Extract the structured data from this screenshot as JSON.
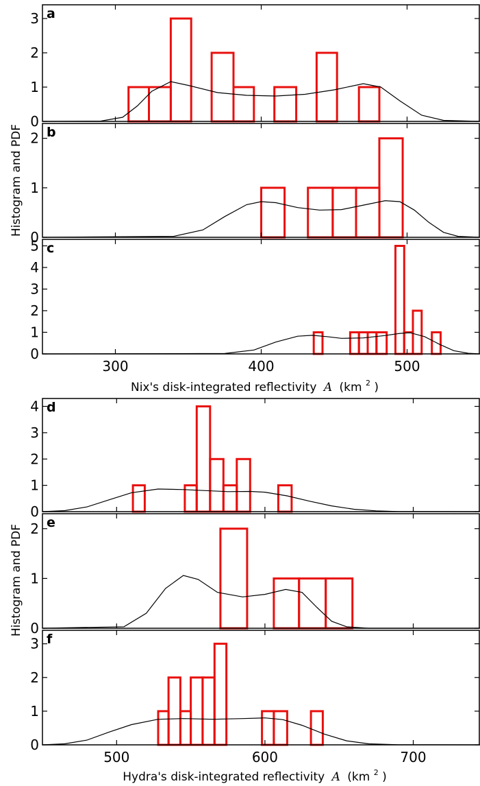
{
  "figure": {
    "top_group": {
      "ylabel": "Histogram and PDF",
      "xlabel": "Nix's disk-integrated reflectivity",
      "xlabel_symbol": "A",
      "xlabel_unit": "(km",
      "xlabel_unit_sup": "2",
      "xlabel_unit_end": " )"
    },
    "bottom_group": {
      "ylabel": "Histogram and PDF",
      "xlabel": "Hydra's disk-integrated reflectivity",
      "xlabel_symbol": "A",
      "xlabel_unit": "(km",
      "xlabel_unit_sup": "2",
      "xlabel_unit_end": " )"
    }
  },
  "chart_data": [
    {
      "panel": "a",
      "type": "bar",
      "histtype": "step",
      "xlim": [
        250,
        550
      ],
      "ylim": [
        0,
        3.4
      ],
      "yticks": [
        0,
        1,
        2,
        3
      ],
      "bar_color": "#e8100e",
      "bins": [
        [
          309,
          323,
          1
        ],
        [
          323,
          338,
          1
        ],
        [
          338,
          352,
          3
        ],
        [
          366,
          381,
          2
        ],
        [
          381,
          395,
          1
        ],
        [
          409,
          424,
          1
        ],
        [
          438,
          452,
          2
        ],
        [
          467,
          481,
          1
        ]
      ],
      "pdf": [
        [
          250,
          0
        ],
        [
          290,
          0.01
        ],
        [
          305,
          0.12
        ],
        [
          315,
          0.45
        ],
        [
          325,
          0.88
        ],
        [
          338,
          1.16
        ],
        [
          350,
          1.05
        ],
        [
          370,
          0.84
        ],
        [
          390,
          0.76
        ],
        [
          410,
          0.74
        ],
        [
          430,
          0.79
        ],
        [
          450,
          0.92
        ],
        [
          470,
          1.1
        ],
        [
          482,
          1.0
        ],
        [
          495,
          0.6
        ],
        [
          510,
          0.18
        ],
        [
          525,
          0.03
        ],
        [
          550,
          0
        ]
      ]
    },
    {
      "panel": "b",
      "type": "bar",
      "histtype": "step",
      "xlim": [
        250,
        550
      ],
      "ylim": [
        0,
        2.3
      ],
      "yticks": [
        0,
        1,
        2
      ],
      "bar_color": "#e8100e",
      "bins": [
        [
          400,
          416,
          1
        ],
        [
          432,
          449,
          1
        ],
        [
          449,
          465,
          1
        ],
        [
          465,
          481,
          1
        ],
        [
          481,
          497,
          2
        ]
      ],
      "pdf": [
        [
          250,
          0
        ],
        [
          340,
          0.02
        ],
        [
          360,
          0.15
        ],
        [
          375,
          0.42
        ],
        [
          390,
          0.66
        ],
        [
          400,
          0.72
        ],
        [
          410,
          0.7
        ],
        [
          425,
          0.6
        ],
        [
          440,
          0.55
        ],
        [
          455,
          0.56
        ],
        [
          470,
          0.65
        ],
        [
          485,
          0.74
        ],
        [
          495,
          0.72
        ],
        [
          505,
          0.55
        ],
        [
          515,
          0.3
        ],
        [
          525,
          0.1
        ],
        [
          535,
          0.02
        ],
        [
          550,
          0
        ]
      ]
    },
    {
      "panel": "c",
      "type": "bar",
      "histtype": "step",
      "xlim": [
        250,
        550
      ],
      "ylim": [
        0,
        5.3
      ],
      "yticks": [
        0,
        1,
        2,
        3,
        4,
        5
      ],
      "xticks": [
        300,
        400,
        500
      ],
      "bar_color": "#e8100e",
      "bins": [
        [
          436,
          442,
          1
        ],
        [
          461,
          467,
          1
        ],
        [
          467,
          473,
          1
        ],
        [
          473,
          479,
          1
        ],
        [
          479,
          486,
          1
        ],
        [
          492,
          498,
          5
        ],
        [
          498,
          504,
          1
        ],
        [
          504,
          510,
          2
        ],
        [
          517,
          523,
          1
        ]
      ],
      "pdf": [
        [
          250,
          0
        ],
        [
          375,
          0.02
        ],
        [
          395,
          0.18
        ],
        [
          410,
          0.55
        ],
        [
          425,
          0.82
        ],
        [
          435,
          0.86
        ],
        [
          445,
          0.8
        ],
        [
          455,
          0.72
        ],
        [
          470,
          0.74
        ],
        [
          485,
          0.85
        ],
        [
          495,
          0.95
        ],
        [
          502,
          0.98
        ],
        [
          512,
          0.8
        ],
        [
          522,
          0.45
        ],
        [
          532,
          0.15
        ],
        [
          542,
          0.03
        ],
        [
          550,
          0
        ]
      ]
    },
    {
      "panel": "d",
      "type": "bar",
      "histtype": "step",
      "xlim": [
        450,
        745
      ],
      "ylim": [
        0,
        4.3
      ],
      "yticks": [
        0,
        1,
        2,
        3,
        4
      ],
      "bar_color": "#e8100e",
      "bins": [
        [
          511,
          519,
          1
        ],
        [
          519,
          546,
          0
        ],
        [
          546,
          554,
          1
        ],
        [
          554,
          563,
          4
        ],
        [
          563,
          572,
          2
        ],
        [
          572,
          581,
          1
        ],
        [
          581,
          590,
          2
        ],
        [
          609,
          618,
          1
        ]
      ],
      "pdf": [
        [
          450,
          0
        ],
        [
          465,
          0.04
        ],
        [
          480,
          0.18
        ],
        [
          495,
          0.45
        ],
        [
          510,
          0.72
        ],
        [
          528,
          0.86
        ],
        [
          545,
          0.84
        ],
        [
          560,
          0.8
        ],
        [
          575,
          0.76
        ],
        [
          590,
          0.77
        ],
        [
          600,
          0.74
        ],
        [
          615,
          0.6
        ],
        [
          630,
          0.4
        ],
        [
          645,
          0.22
        ],
        [
          660,
          0.09
        ],
        [
          675,
          0.03
        ],
        [
          690,
          0.005
        ],
        [
          745,
          0
        ]
      ]
    },
    {
      "panel": "e",
      "type": "bar",
      "histtype": "step",
      "xlim": [
        450,
        745
      ],
      "ylim": [
        0,
        2.3
      ],
      "yticks": [
        0,
        1,
        2
      ],
      "bar_color": "#e8100e",
      "bins": [
        [
          570,
          588,
          2
        ],
        [
          588,
          606,
          0
        ],
        [
          606,
          623,
          1
        ],
        [
          623,
          641,
          1
        ],
        [
          641,
          659,
          1
        ]
      ],
      "pdf": [
        [
          450,
          0
        ],
        [
          505,
          0.03
        ],
        [
          520,
          0.3
        ],
        [
          533,
          0.8
        ],
        [
          545,
          1.06
        ],
        [
          555,
          0.98
        ],
        [
          568,
          0.72
        ],
        [
          585,
          0.63
        ],
        [
          600,
          0.68
        ],
        [
          614,
          0.78
        ],
        [
          625,
          0.72
        ],
        [
          635,
          0.42
        ],
        [
          645,
          0.14
        ],
        [
          655,
          0.03
        ],
        [
          670,
          0
        ],
        [
          745,
          0
        ]
      ]
    },
    {
      "panel": "f",
      "type": "bar",
      "histtype": "step",
      "xlim": [
        450,
        745
      ],
      "ylim": [
        0,
        3.4
      ],
      "yticks": [
        0,
        1,
        2,
        3
      ],
      "xticks": [
        500,
        600,
        700
      ],
      "bar_color": "#e8100e",
      "bins": [
        [
          528,
          535,
          1
        ],
        [
          535,
          543,
          2
        ],
        [
          543,
          550,
          1
        ],
        [
          550,
          558,
          2
        ],
        [
          558,
          566,
          2
        ],
        [
          566,
          574,
          3
        ],
        [
          598,
          606,
          1
        ],
        [
          606,
          615,
          1
        ],
        [
          631,
          639,
          1
        ]
      ],
      "pdf": [
        [
          450,
          0
        ],
        [
          465,
          0.03
        ],
        [
          480,
          0.14
        ],
        [
          495,
          0.38
        ],
        [
          510,
          0.6
        ],
        [
          528,
          0.76
        ],
        [
          545,
          0.78
        ],
        [
          565,
          0.76
        ],
        [
          585,
          0.78
        ],
        [
          600,
          0.8
        ],
        [
          612,
          0.75
        ],
        [
          625,
          0.58
        ],
        [
          640,
          0.32
        ],
        [
          655,
          0.12
        ],
        [
          670,
          0.03
        ],
        [
          690,
          0.005
        ],
        [
          745,
          0
        ]
      ]
    }
  ]
}
